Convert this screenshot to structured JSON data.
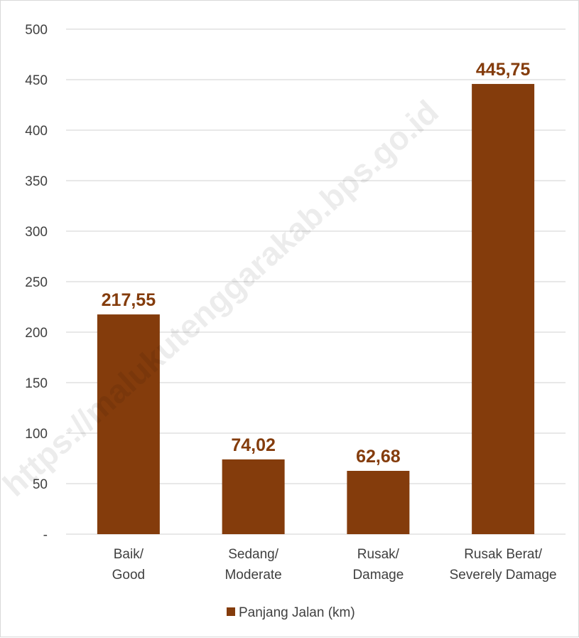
{
  "chart_data": {
    "type": "bar",
    "categories": [
      [
        "Baik/",
        "Good"
      ],
      [
        "Sedang/",
        "Moderate"
      ],
      [
        "Rusak/",
        "Damage"
      ],
      [
        "Rusak Berat/",
        "Severely Damage"
      ]
    ],
    "series": [
      {
        "name": "Panjang Jalan (km)",
        "values": [
          217.55,
          74.02,
          62.68,
          445.75
        ],
        "value_labels": [
          "217,55",
          "74,02",
          "62,68",
          "445,75"
        ]
      }
    ],
    "y_ticks": [
      {
        "value": 0,
        "label": "-"
      },
      {
        "value": 50,
        "label": "50"
      },
      {
        "value": 100,
        "label": "100"
      },
      {
        "value": 150,
        "label": "150"
      },
      {
        "value": 200,
        "label": "200"
      },
      {
        "value": 250,
        "label": "250"
      },
      {
        "value": 300,
        "label": "300"
      },
      {
        "value": 350,
        "label": "350"
      },
      {
        "value": 400,
        "label": "400"
      },
      {
        "value": 450,
        "label": "450"
      },
      {
        "value": 500,
        "label": "500"
      }
    ],
    "ylim": [
      0,
      500
    ],
    "grid": true,
    "legend_position": "bottom",
    "title": "",
    "xlabel": "",
    "ylabel": ""
  },
  "colors": {
    "bar": "#843c0c",
    "data_label": "#843c0c",
    "grid": "#d9d9d9"
  },
  "watermark": "https://malukutenggarakab.bps.go.id"
}
